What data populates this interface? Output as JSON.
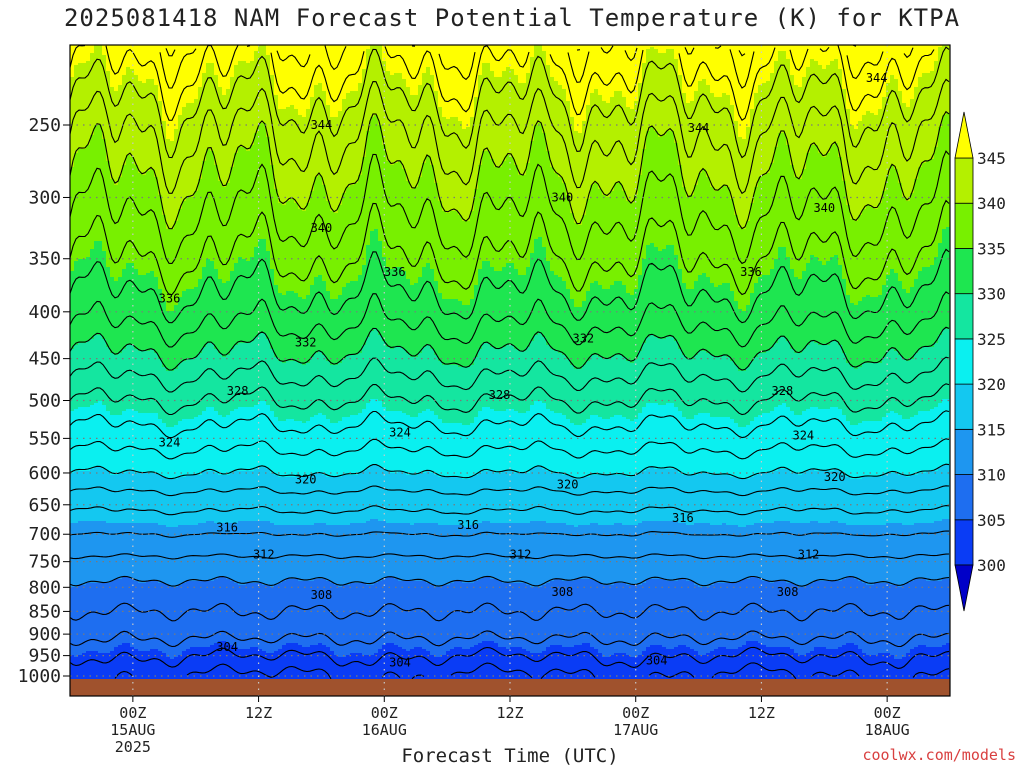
{
  "title": "2025081418 NAM Forecast Potential Temperature (K) for KTPA",
  "xlabel": "Forecast Time (UTC)",
  "credit": "coolwx.com/models",
  "colors": {
    "ground": "#a0522d",
    "contour": "#000000",
    "dotgrid": "#7a7a7a",
    "band_colors": {
      "below_300": "#0000c8",
      "300_305": "#0a3cf5",
      "305_310": "#1e6ef0",
      "310_315": "#1e96f0",
      "315_320": "#14c8f0",
      "320_325": "#0af0f0",
      "325_330": "#14e6a0",
      "330_335": "#1ee650",
      "335_340": "#78f000",
      "340_345": "#b4f000",
      "above_345": "#ffff00"
    }
  },
  "chart_data": {
    "type": "heatmap",
    "title": "2025081418 NAM Forecast Potential Temperature (K) for KTPA",
    "xlabel": "Forecast Time (UTC)",
    "ylabel": "",
    "y_scale": "log-pressure (hPa, inverted)",
    "y_ticks": [
      250,
      300,
      350,
      400,
      450,
      500,
      550,
      600,
      650,
      700,
      750,
      800,
      850,
      900,
      950,
      1000
    ],
    "ylim": [
      1000,
      200
    ],
    "x_ticks": [
      {
        "hour": 6,
        "line1": "00Z",
        "line2": "15AUG",
        "line3": "2025"
      },
      {
        "hour": 18,
        "line1": "12Z",
        "line2": "",
        "line3": ""
      },
      {
        "hour": 30,
        "line1": "00Z",
        "line2": "16AUG",
        "line3": ""
      },
      {
        "hour": 42,
        "line1": "12Z",
        "line2": "",
        "line3": ""
      },
      {
        "hour": 54,
        "line1": "00Z",
        "line2": "17AUG",
        "line3": ""
      },
      {
        "hour": 66,
        "line1": "12Z",
        "line2": "",
        "line3": ""
      },
      {
        "hour": 78,
        "line1": "00Z",
        "line2": "18AUG",
        "line3": ""
      }
    ],
    "xlim": [
      0,
      84
    ],
    "grid": true,
    "colorbar_levels": [
      300,
      305,
      310,
      315,
      320,
      325,
      330,
      335,
      340,
      345
    ],
    "colorbar_labels": [
      "300",
      "305",
      "310",
      "315",
      "320",
      "325",
      "330",
      "335",
      "340",
      "345"
    ],
    "contour_interval": 2,
    "profile": {
      "pressure": [
        1000,
        950,
        900,
        850,
        800,
        750,
        700,
        650,
        600,
        550,
        500,
        450,
        400,
        350,
        300,
        250,
        200
      ],
      "theta": [
        302.5,
        304.5,
        306.5,
        308,
        309.5,
        311.5,
        314,
        316.5,
        320,
        323,
        326,
        329.5,
        333,
        336,
        339,
        342.5,
        348
      ]
    },
    "contour_labels": [
      {
        "text": "344",
        "hour": 24,
        "p": 250
      },
      {
        "text": "344",
        "hour": 60,
        "p": 252
      },
      {
        "text": "344",
        "hour": 77,
        "p": 222
      },
      {
        "text": "340",
        "hour": 47,
        "p": 300
      },
      {
        "text": "340",
        "hour": 24,
        "p": 324
      },
      {
        "text": "340",
        "hour": 72,
        "p": 308
      },
      {
        "text": "336",
        "hour": 31,
        "p": 362
      },
      {
        "text": "336",
        "hour": 65,
        "p": 362
      },
      {
        "text": "336",
        "hour": 9.5,
        "p": 387
      },
      {
        "text": "332",
        "hour": 22.5,
        "p": 432
      },
      {
        "text": "332",
        "hour": 49,
        "p": 428
      },
      {
        "text": "328",
        "hour": 16,
        "p": 488
      },
      {
        "text": "328",
        "hour": 41,
        "p": 493
      },
      {
        "text": "328",
        "hour": 68,
        "p": 488
      },
      {
        "text": "324",
        "hour": 9.5,
        "p": 556
      },
      {
        "text": "324",
        "hour": 31.5,
        "p": 542
      },
      {
        "text": "324",
        "hour": 70,
        "p": 546
      },
      {
        "text": "320",
        "hour": 22.5,
        "p": 610
      },
      {
        "text": "320",
        "hour": 47.5,
        "p": 618
      },
      {
        "text": "320",
        "hour": 73,
        "p": 606
      },
      {
        "text": "316",
        "hour": 15,
        "p": 688
      },
      {
        "text": "316",
        "hour": 38,
        "p": 684
      },
      {
        "text": "316",
        "hour": 58.5,
        "p": 672
      },
      {
        "text": "312",
        "hour": 18.5,
        "p": 737
      },
      {
        "text": "312",
        "hour": 43,
        "p": 737
      },
      {
        "text": "312",
        "hour": 70.5,
        "p": 737
      },
      {
        "text": "308",
        "hour": 24,
        "p": 816
      },
      {
        "text": "308",
        "hour": 47,
        "p": 809
      },
      {
        "text": "308",
        "hour": 68.5,
        "p": 809
      },
      {
        "text": "304",
        "hour": 15,
        "p": 930
      },
      {
        "text": "304",
        "hour": 31.5,
        "p": 966
      },
      {
        "text": "304",
        "hour": 56,
        "p": 962
      }
    ]
  }
}
